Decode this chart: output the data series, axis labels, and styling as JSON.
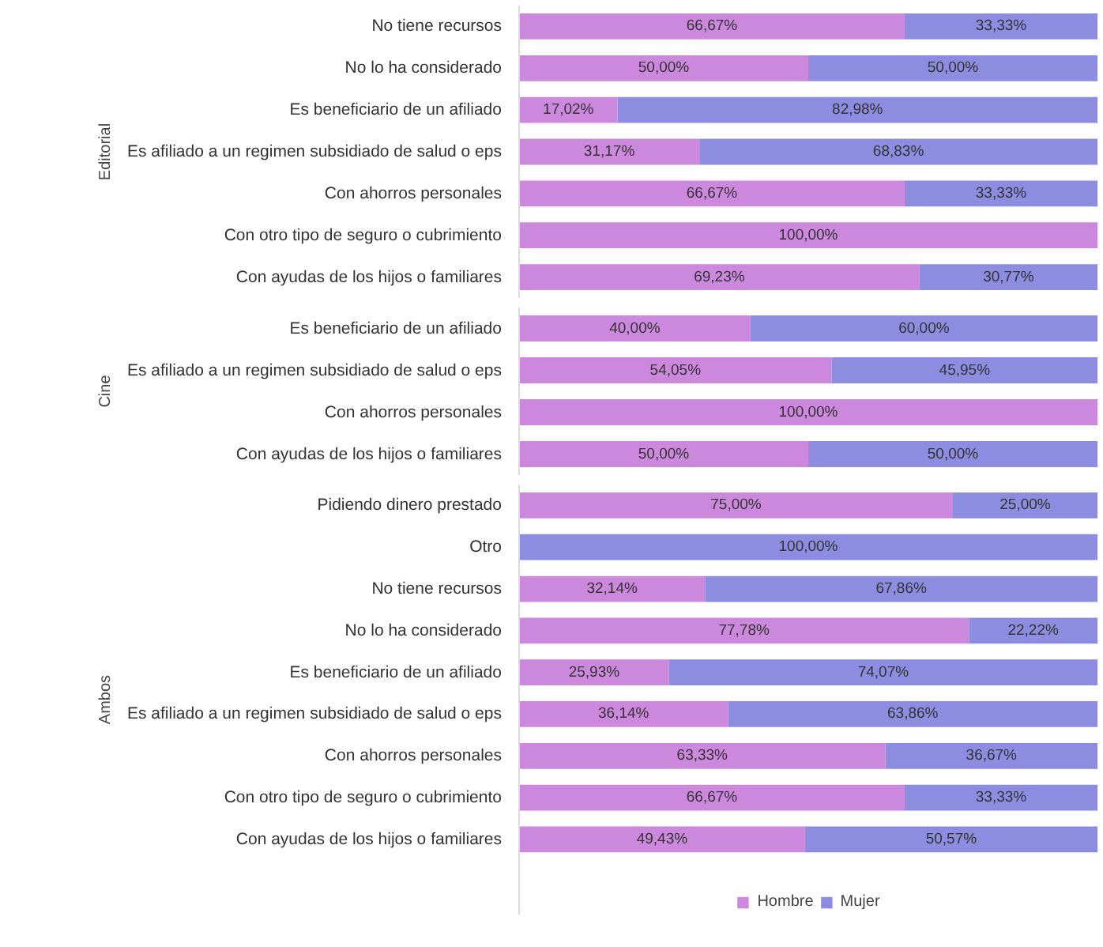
{
  "chart_data": [
    {
      "type": "bar",
      "orientation": "horizontal",
      "stacked": true,
      "ylabel": "Editorial",
      "xlim": [
        0,
        100
      ],
      "tick_labels": "y",
      "grid": false,
      "categories": [
        "No tiene recursos",
        "No lo ha considerado",
        "Es beneficiario de un afiliado",
        "Es afiliado a un regimen subsidiado de salud o eps",
        "Con ahorros personales",
        "Con otro tipo de seguro o cubrimiento",
        "Con ayudas de los hijos o familiares"
      ],
      "series": [
        {
          "color": "#cc88dd",
          "values": [
            66.67,
            50,
            17.02,
            31.17,
            66.67,
            100,
            69.23
          ],
          "value_labels": [
            "66,67%",
            "50,00%",
            "17,02%",
            "31,17%",
            "66,67%",
            "100,00%",
            "69,23%"
          ]
        },
        {
          "color": "#8c8ce0",
          "values": [
            33.33,
            50,
            82.98,
            68.83,
            33.33,
            0,
            30.77
          ],
          "value_labels": [
            "33,33%",
            "50,00%",
            "82,98%",
            "68,83%",
            "33,33%",
            null,
            "30,77%"
          ]
        }
      ]
    },
    {
      "type": "bar",
      "orientation": "horizontal",
      "stacked": true,
      "ylabel": "Cine",
      "xlim": [
        0,
        100
      ],
      "tick_labels": "y",
      "grid": false,
      "categories": [
        "Es beneficiario de un afiliado",
        "Es afiliado a un regimen subsidiado de salud o eps",
        "Con ahorros personales",
        "Con ayudas de los hijos o familiares"
      ],
      "series": [
        {
          "color": "#cc88dd",
          "values": [
            40,
            54.05,
            100,
            50
          ],
          "value_labels": [
            "40,00%",
            "54,05%",
            "100,00%",
            "50,00%"
          ]
        },
        {
          "color": "#8c8ce0",
          "values": [
            60,
            45.95,
            0,
            50
          ],
          "value_labels": [
            "60,00%",
            "45,95%",
            null,
            "50,00%"
          ]
        }
      ]
    },
    {
      "type": "bar",
      "orientation": "horizontal",
      "stacked": true,
      "ylabel": "Ambos",
      "xlim": [
        0,
        100
      ],
      "tick_labels": "y",
      "grid": false,
      "legend": "bottom",
      "categories": [
        "Pidiendo dinero prestado",
        "Otro",
        "No tiene recursos",
        "No lo ha considerado",
        "Es beneficiario de un afiliado",
        "Es afiliado a un regimen subsidiado de salud o eps",
        "Con ahorros personales",
        "Con otro tipo de seguro o cubrimiento",
        "Con ayudas de los hijos o familiares"
      ],
      "series": [
        {
          "name": "Hombre",
          "color": "#cc88dd",
          "values": [
            75,
            0,
            32.14,
            77.78,
            25.93,
            36.14,
            63.33,
            66.67,
            49.43
          ],
          "value_labels": [
            "75,00%",
            null,
            "32,14%",
            "77,78%",
            "25,93%",
            "36,14%",
            "63,33%",
            "66,67%",
            "49,43%"
          ]
        },
        {
          "name": "Mujer",
          "color": "#8c8ce0",
          "values": [
            25,
            100,
            67.86,
            22.22,
            74.07,
            63.86,
            36.67,
            33.33,
            50.57
          ],
          "value_labels": [
            "25,00%",
            "100,00%",
            "67,86%",
            "22,22%",
            "74,07%",
            "63,86%",
            "36,67%",
            "33,33%",
            "50,57%"
          ]
        }
      ]
    }
  ]
}
